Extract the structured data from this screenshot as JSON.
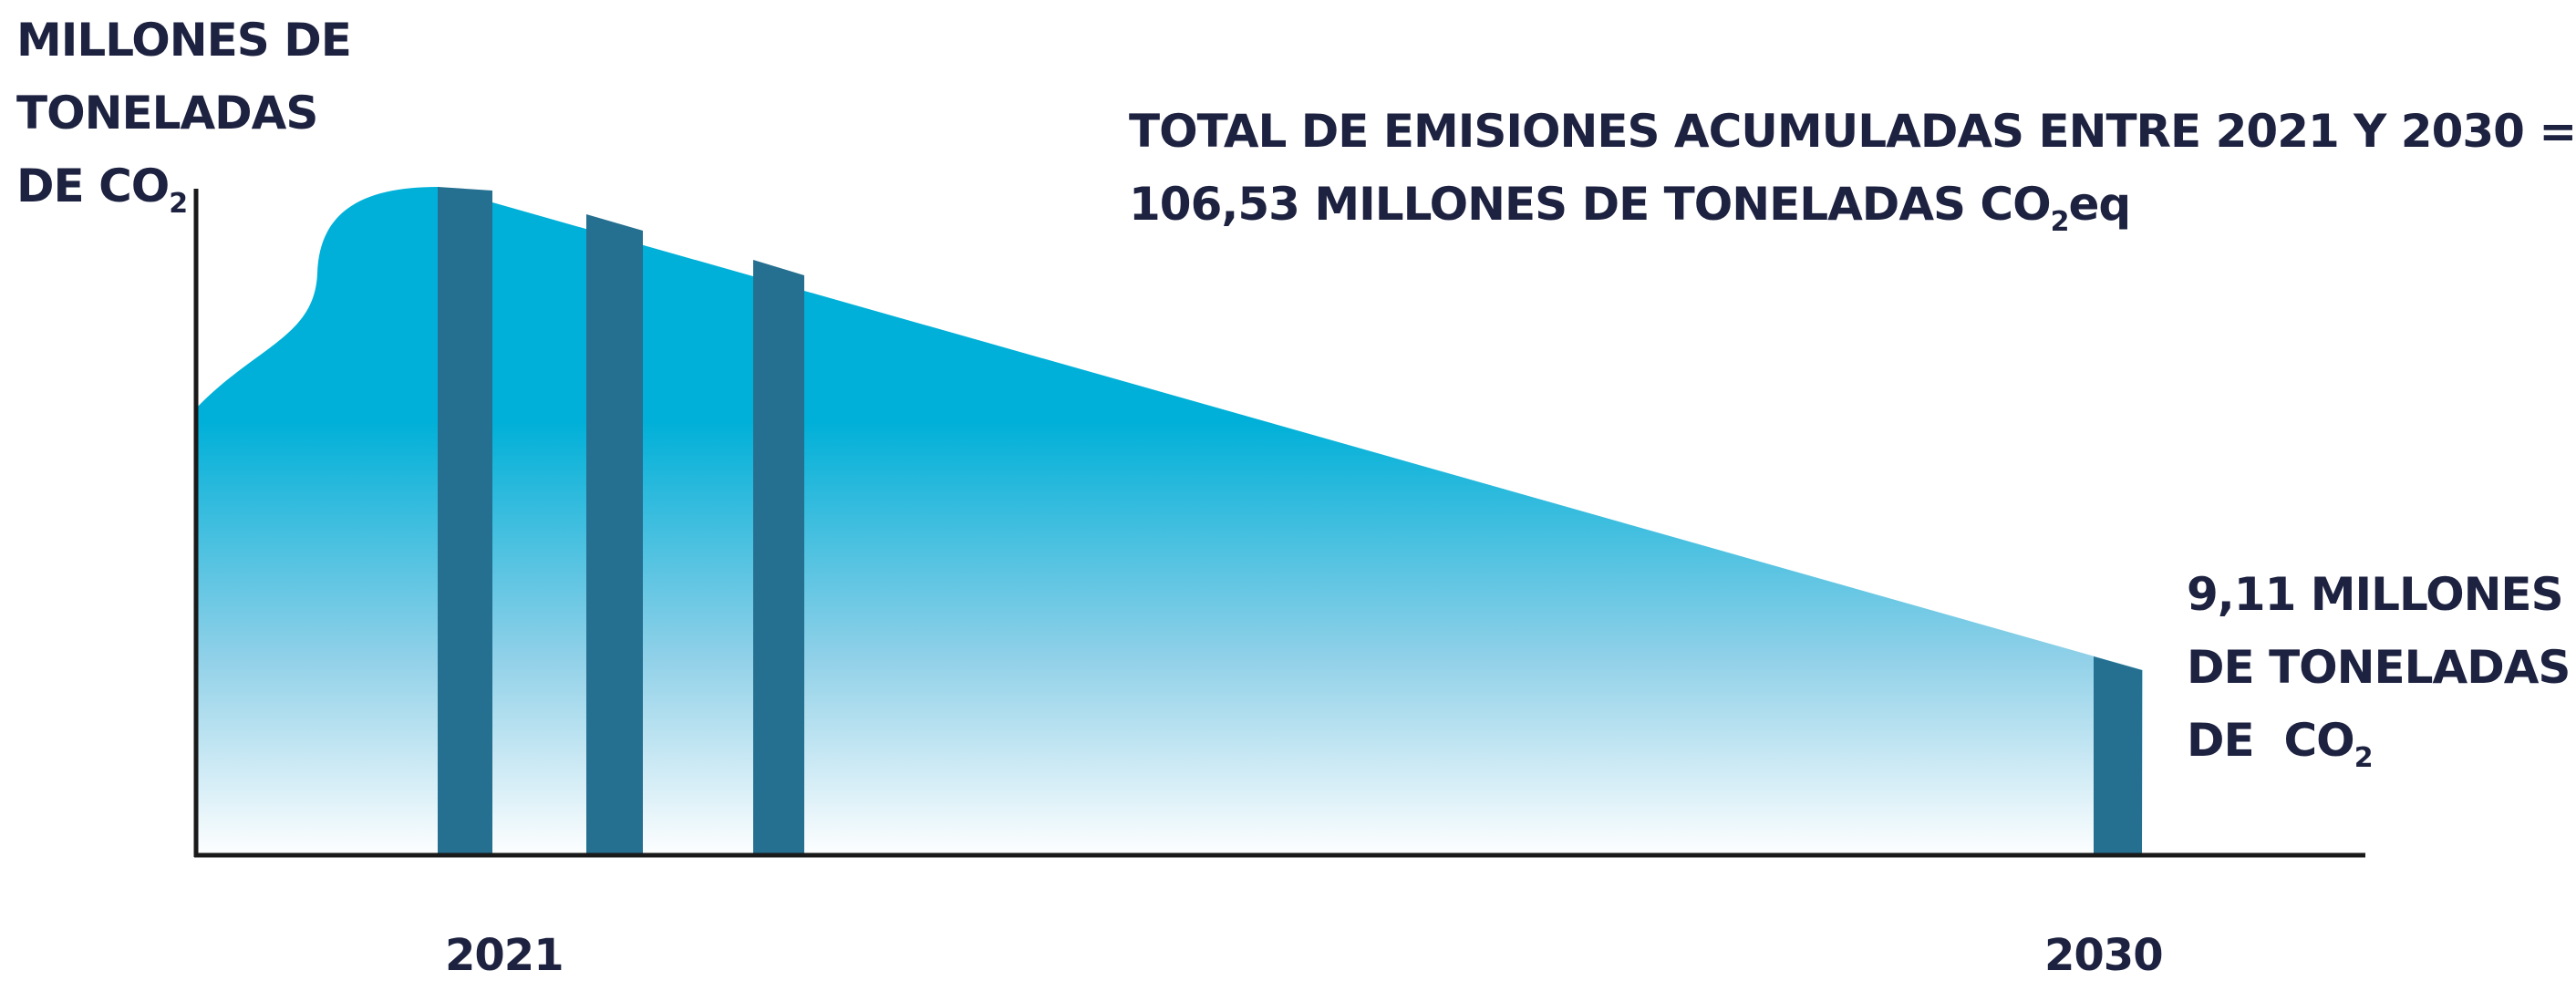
{
  "chart_data": {
    "type": "area",
    "ylabel": [
      "MILLONES DE",
      "TONELADAS",
      "DE CO",
      "2"
    ],
    "annotation_total": {
      "line1": "TOTAL DE EMISIONES ACUMULADAS ENTRE 2021 Y 2030 =",
      "line2_pre": "106,53 MILLONES DE TONELADAS CO",
      "line2_sub": "2",
      "line2_post": "eq"
    },
    "annotation_end": {
      "line1": "9,11 MILLONES",
      "line2": "DE TONELADAS",
      "line3_pre": "DE  CO",
      "line3_sub": "2"
    },
    "x_ticks": [
      "2021",
      "2030"
    ],
    "end_value": 9.11,
    "cumulative_total": 106.53,
    "colors": {
      "area_top": "#00b0d8",
      "area_bottom": "#ffffff",
      "bars": "#256f90",
      "axis": "#1a1a1a",
      "text": "#1d2240"
    }
  }
}
